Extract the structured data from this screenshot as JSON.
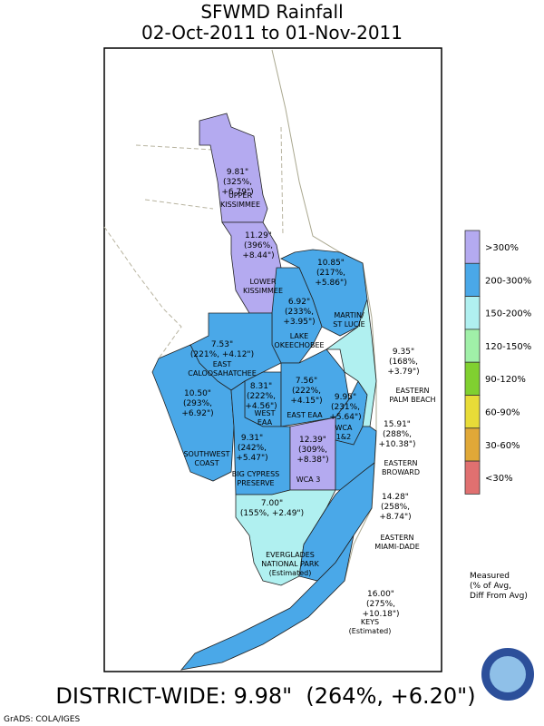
{
  "title": [
    "SFWMD Rainfall",
    "02-Oct-2011 to 01-Nov-2011"
  ],
  "regions": [
    {
      "stats": [
        "9.81\"",
        "(325%,",
        "+6.79\")"
      ],
      "name": [
        "UPPER",
        "KISSIMMEE"
      ],
      "color": "#b4aaf0"
    },
    {
      "stats": [
        "11.29\"",
        "(396%,",
        "+8.44\")"
      ],
      "name": [
        "LOWER",
        "KISSIMMEE"
      ],
      "color": "#b4aaf0"
    },
    {
      "stats": [
        "10.85\"",
        "(217%,",
        "+5.86\")"
      ],
      "name": [
        "MARTIN/",
        "ST LUCIE"
      ],
      "color": "#4aa8e8"
    },
    {
      "stats": [
        "6.92\"",
        "(233%,",
        "+3.95\")"
      ],
      "name": [
        "LAKE",
        "OKEECHOBEE"
      ],
      "color": "#4aa8e8"
    },
    {
      "stats": [
        "7.53\"",
        "(221%, +4.12\")"
      ],
      "name": [
        "EAST",
        "CALOOSAHATCHEE"
      ],
      "color": "#4aa8e8"
    },
    {
      "stats": [
        "10.50\"",
        "(293%,",
        "+6.92\")"
      ],
      "name": [
        "SOUTHWEST",
        "COAST"
      ],
      "color": "#4aa8e8"
    },
    {
      "stats": [
        "8.31\"",
        "(222%,",
        "+4.56\")"
      ],
      "name": [
        "WEST",
        "EAA"
      ],
      "color": "#4aa8e8"
    },
    {
      "stats": [
        "7.56\"",
        "(222%,",
        "+4.15\")"
      ],
      "name": [
        "EAST EAA"
      ],
      "color": "#4aa8e8"
    },
    {
      "stats": [
        "9.95\"",
        "(231%,",
        "+5.64\")"
      ],
      "name": [
        "WCA",
        "1&2"
      ],
      "color": "#4aa8e8"
    },
    {
      "stats": [
        "9.31\"",
        "(242%,",
        "+5.47\")"
      ],
      "name": [
        "BIG CYPRESS",
        "PRESERVE"
      ],
      "color": "#4aa8e8"
    },
    {
      "stats": [
        "12.39\"",
        "(309%,",
        "+8.38\")"
      ],
      "name": [
        "WCA 3"
      ],
      "color": "#b4aaf0"
    },
    {
      "stats": [
        "7.00\"",
        "(155%, +2.49\")"
      ],
      "name": [
        "EVERGLADES",
        "NATIONAL PARK",
        "(Estimated)"
      ],
      "color": "#b0f0f0"
    },
    {
      "stats": [
        "9.35\"",
        "(168%,",
        "+3.79\")"
      ],
      "name": [
        "EASTERN",
        "PALM BEACH"
      ],
      "color": "#b0f0f0"
    },
    {
      "stats": [
        "15.91\"",
        "(288%,",
        "+10.38\")"
      ],
      "name": [
        "EASTERN",
        "BROWARD"
      ],
      "color": "#4aa8e8"
    },
    {
      "stats": [
        "14.28\"",
        "(258%,",
        "+8.74\")"
      ],
      "name": [
        "EASTERN",
        "MIAMI-DADE"
      ],
      "color": "#4aa8e8"
    },
    {
      "stats": [
        "16.00\"",
        "(275%,",
        "+10.18\")"
      ],
      "name": [
        "KEYS",
        "(Estimated)"
      ],
      "color": "#4aa8e8"
    }
  ],
  "legend": [
    {
      "label": ">300%",
      "color": "#b4aaf0"
    },
    {
      "label": "200-300%",
      "color": "#4aa8e8"
    },
    {
      "label": "150-200%",
      "color": "#b0f0f0"
    },
    {
      "label": "120-150%",
      "color": "#a0f0a8"
    },
    {
      "label": "90-120%",
      "color": "#80d030"
    },
    {
      "label": "60-90%",
      "color": "#e8dc38"
    },
    {
      "label": "30-60%",
      "color": "#e0a838"
    },
    {
      "label": "<30%",
      "color": "#e07070"
    }
  ],
  "note": [
    "Measured",
    "(% of Avg,",
    "Diff From Avg)"
  ],
  "district_wide": "DISTRICT-WIDE: 9.98\"  (264%, +6.20\")",
  "credit": "GrADS: COLA/IGES"
}
